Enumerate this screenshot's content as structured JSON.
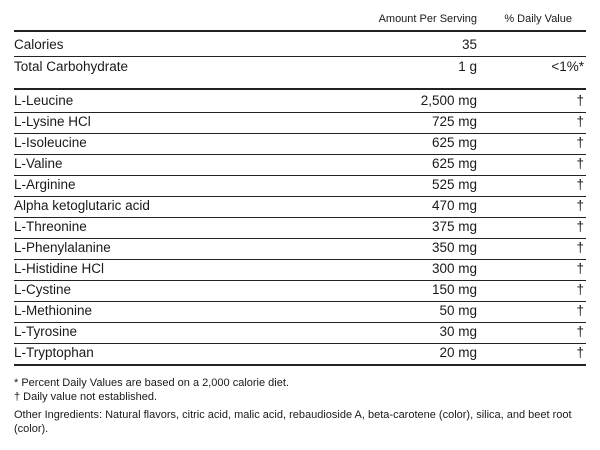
{
  "header": {
    "amount": "Amount Per Serving",
    "daily_value": "% Daily Value"
  },
  "summary_rows": [
    [
      "Calories",
      "35"
    ],
    [
      "Total Carbohydrate",
      "1 g",
      "<1%*"
    ]
  ],
  "ingredient_rows": [
    [
      "L-Leucine",
      "2,500 mg",
      "†"
    ],
    [
      "L-Lysine HCl",
      "725 mg",
      "†"
    ],
    [
      "L-Isoleucine",
      "625 mg",
      "†"
    ],
    [
      "L-Valine",
      "625 mg",
      "†"
    ],
    [
      "L-Arginine",
      "525 mg",
      "†"
    ],
    [
      "Alpha ketoglutaric acid",
      "470 mg",
      "†"
    ],
    [
      "L-Threonine",
      "375 mg",
      "†"
    ],
    [
      "L-Phenylalanine",
      "350 mg",
      "†"
    ],
    [
      "L-Histidine HCl",
      "300 mg",
      "†"
    ],
    [
      "L-Cystine",
      "150 mg",
      "†"
    ],
    [
      "L-Methionine",
      "50 mg",
      "†"
    ],
    [
      "L-Tyrosine",
      "30 mg",
      "†"
    ],
    [
      "L-Tryptophan",
      "20 mg",
      "†"
    ]
  ],
  "footnotes": [
    "* Percent Daily Values are based on a 2,000 calorie diet.",
    "† Daily value not established."
  ],
  "other_ingredients": "Other Ingredients: Natural flavors, citric acid, malic acid, rebaudioside A, beta-carotene (color), silica, and beet root (color)."
}
